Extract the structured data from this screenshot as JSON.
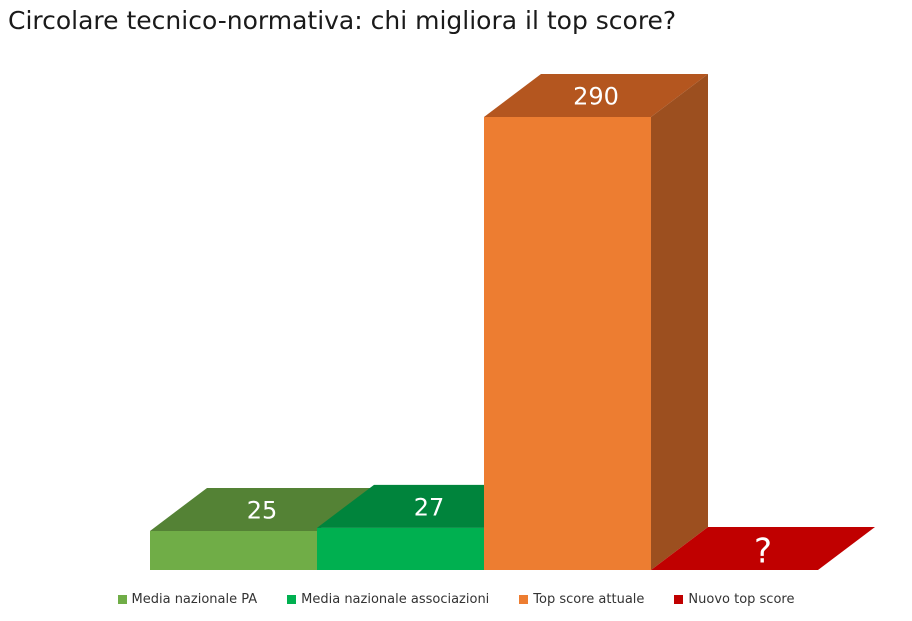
{
  "chart_data": {
    "type": "bar",
    "title": "Circolare tecnico-normativa: chi migliora il top score?",
    "categories": [
      "Media nazionale PA",
      "Media nazionale associazioni",
      "Top score attuale",
      "Nuovo top score"
    ],
    "values": [
      25,
      27,
      290,
      null
    ],
    "data_labels": [
      "25",
      "27",
      "290",
      "?"
    ],
    "colors": [
      "#70ad47",
      "#00b050",
      "#ed7d31",
      "#c00000"
    ],
    "side_colors": [
      "#548235",
      "#00843c",
      "#9c4f1f",
      "#c00000"
    ],
    "top_colors": [
      "#548235",
      "#00843c",
      "#b4561f",
      "#c00000"
    ],
    "style": "3d",
    "ylim": [
      0,
      290
    ],
    "grid": false,
    "legend_position": "bottom"
  }
}
